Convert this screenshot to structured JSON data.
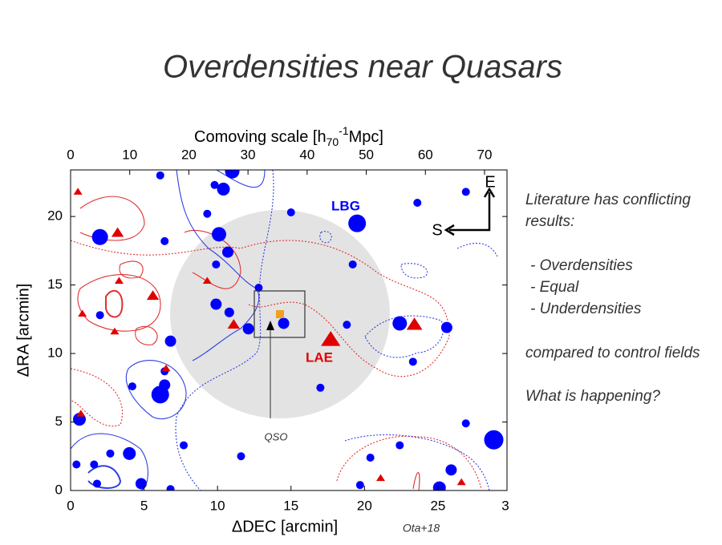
{
  "title": "Overdensities near Quasars",
  "text": {
    "lines": [
      "Literature has conflicting",
      "results:",
      "- Overdensities",
      "- Equal",
      "- Underdensities",
      "compared to control fields",
      "What is happening?"
    ]
  },
  "credit": "Ota+18",
  "chart_data": {
    "type": "scatter",
    "xlabel": "ΔDEC [arcmin]",
    "ylabel": "ΔRA [arcmin]",
    "x2label_parts": [
      "Comoving scale [h",
      "70",
      "-1",
      "Mpc]"
    ],
    "xlim": [
      0,
      29.7
    ],
    "ylim": [
      0,
      23.4
    ],
    "x2lim": [
      0,
      73.8
    ],
    "xticks": [
      0,
      5,
      10,
      15,
      20,
      25,
      {
        "value": 30,
        "label": "3"
      }
    ],
    "yticks": [
      0,
      5,
      10,
      15,
      20
    ],
    "x2ticks": [
      0,
      10,
      20,
      30,
      40,
      50,
      60,
      70
    ],
    "annotations": [
      "QSO",
      "E",
      "S"
    ],
    "series": [
      {
        "name": "LBG",
        "color": "#0000ff",
        "marker": "circle",
        "x": [
          11.0,
          10.4,
          9.8,
          6.1,
          9.3,
          2.0,
          6.4,
          10.1,
          10.7,
          9.9,
          12.8,
          9.9,
          10.8,
          12.1,
          14.5,
          15.0,
          19.5,
          19.2,
          18.8,
          22.4,
          25.6,
          23.3,
          23.6,
          26.9,
          6.8,
          2.0,
          6.4,
          6.1,
          6.4,
          4.2,
          0.6,
          17.0,
          7.7,
          11.6,
          4.0,
          2.7,
          0.4,
          1.6,
          1.8,
          4.8,
          6.8,
          19.7,
          20.4,
          22.4,
          26.9,
          25.9,
          25.1,
          28.8
        ],
        "y": [
          23.3,
          22.0,
          22.3,
          23.0,
          20.2,
          18.5,
          18.2,
          18.7,
          17.4,
          16.5,
          14.8,
          13.6,
          13.0,
          11.8,
          12.2,
          20.3,
          19.5,
          16.5,
          12.1,
          12.2,
          11.9,
          9.4,
          21.0,
          21.8,
          10.9,
          12.8,
          7.7,
          7.0,
          8.7,
          7.6,
          5.2,
          7.5,
          3.3,
          2.5,
          2.7,
          2.7,
          1.9,
          1.9,
          0.5,
          0.5,
          0.1,
          0.4,
          2.4,
          3.3,
          4.9,
          1.5,
          0.2,
          3.7
        ],
        "sizes": [
          9,
          8,
          5,
          5,
          5,
          10,
          5,
          9,
          7,
          5,
          5,
          7,
          6,
          7,
          7,
          5,
          11,
          5,
          5,
          9,
          7,
          5,
          5,
          5,
          7,
          5,
          7,
          11,
          5,
          5,
          8,
          5,
          5,
          5,
          8,
          5,
          5,
          5,
          5,
          7,
          5,
          5,
          5,
          5,
          5,
          7,
          8,
          12
        ]
      },
      {
        "name": "LAE",
        "color": "#e00000",
        "marker": "triangle",
        "x": [
          0.5,
          3.2,
          3.3,
          5.6,
          0.8,
          3.0,
          9.3,
          11.1,
          17.7,
          23.4,
          6.5,
          0.7,
          21.1,
          26.6
        ],
        "y": [
          21.8,
          18.8,
          15.3,
          14.2,
          12.9,
          11.6,
          15.3,
          12.1,
          11.0,
          12.1,
          8.9,
          5.6,
          0.9,
          0.6
        ],
        "sizes": [
          5,
          7,
          5,
          7,
          5,
          5,
          5,
          7,
          11,
          9,
          5,
          5,
          5,
          5
        ]
      }
    ]
  }
}
